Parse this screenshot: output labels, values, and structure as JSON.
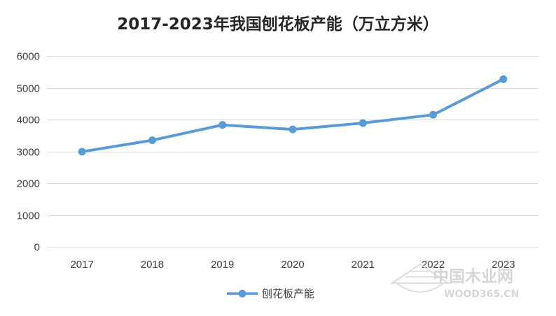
{
  "chart_data": {
    "type": "line",
    "title": "2017-2023年我国刨花板产能（万立方米）",
    "categories": [
      "2017",
      "2018",
      "2019",
      "2020",
      "2021",
      "2022",
      "2023"
    ],
    "series": [
      {
        "name": "刨花板产能",
        "values": [
          2990,
          3350,
          3830,
          3690,
          3890,
          4150,
          5270
        ]
      }
    ],
    "ylim": [
      0,
      6000
    ],
    "yticks": [
      0,
      1000,
      2000,
      3000,
      4000,
      5000,
      6000
    ],
    "grid": true,
    "legend_position": "bottom",
    "colors": {
      "line": "#5b9bd5",
      "grid": "#d9d9d9",
      "text": "#404040"
    }
  },
  "watermark": {
    "cn": "中国木业网",
    "url": "WOOD365.CN"
  }
}
